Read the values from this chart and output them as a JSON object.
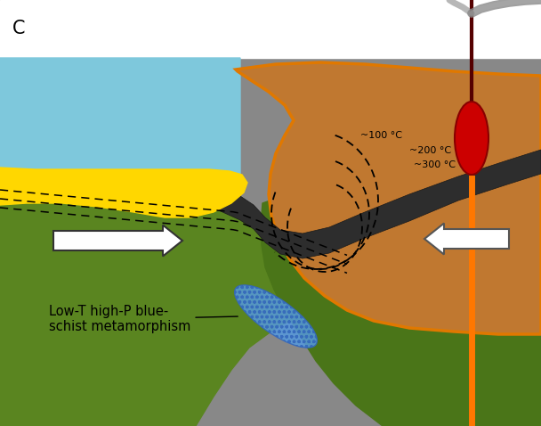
{
  "bg_color": "#ffffff",
  "gray_mantle": "#888888",
  "ocean_color": "#7EC8DC",
  "yellow_color": "#FFD700",
  "green_plate": "#5A8520",
  "green_plate2": "#4A7518",
  "dark_slab": "#2D2D2D",
  "brown_wedge": "#C07830",
  "orange_outline": "#E07800",
  "red_magma": "#CC0000",
  "dark_conduit": "#550000",
  "orange_conduit": "#FF7700",
  "blue_schist": "#5599DD",
  "smoke_color": "#999999",
  "temp_labels": [
    "~100 °C",
    "~200 °C",
    "~300 °C"
  ],
  "label_c": "C",
  "metamorphism_label": "Low-T high-P blue-\nschist metamorphism"
}
